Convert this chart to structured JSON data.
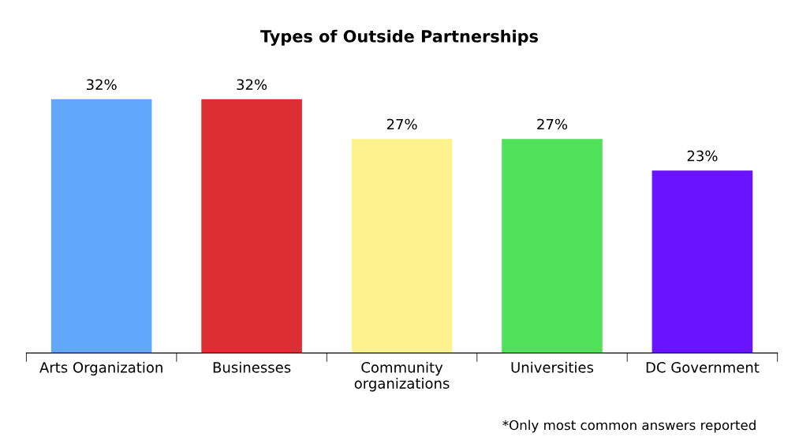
{
  "chart_data": {
    "type": "bar",
    "title": "Types of Outside Partnerships",
    "categories": [
      "Arts Organization",
      "Businesses",
      "Community\norganizations",
      "Universities",
      "DC Government"
    ],
    "values": [
      32,
      32,
      27,
      27,
      23
    ],
    "colors": [
      "#61a8fd",
      "#dd2e34",
      "#fef28c",
      "#4fe15a",
      "#6a13fe"
    ],
    "value_labels": [
      "32%",
      "32%",
      "27%",
      "27%",
      "23%"
    ],
    "annotations": [
      "*Only most common answers reported"
    ],
    "grid": false,
    "legend": false
  }
}
